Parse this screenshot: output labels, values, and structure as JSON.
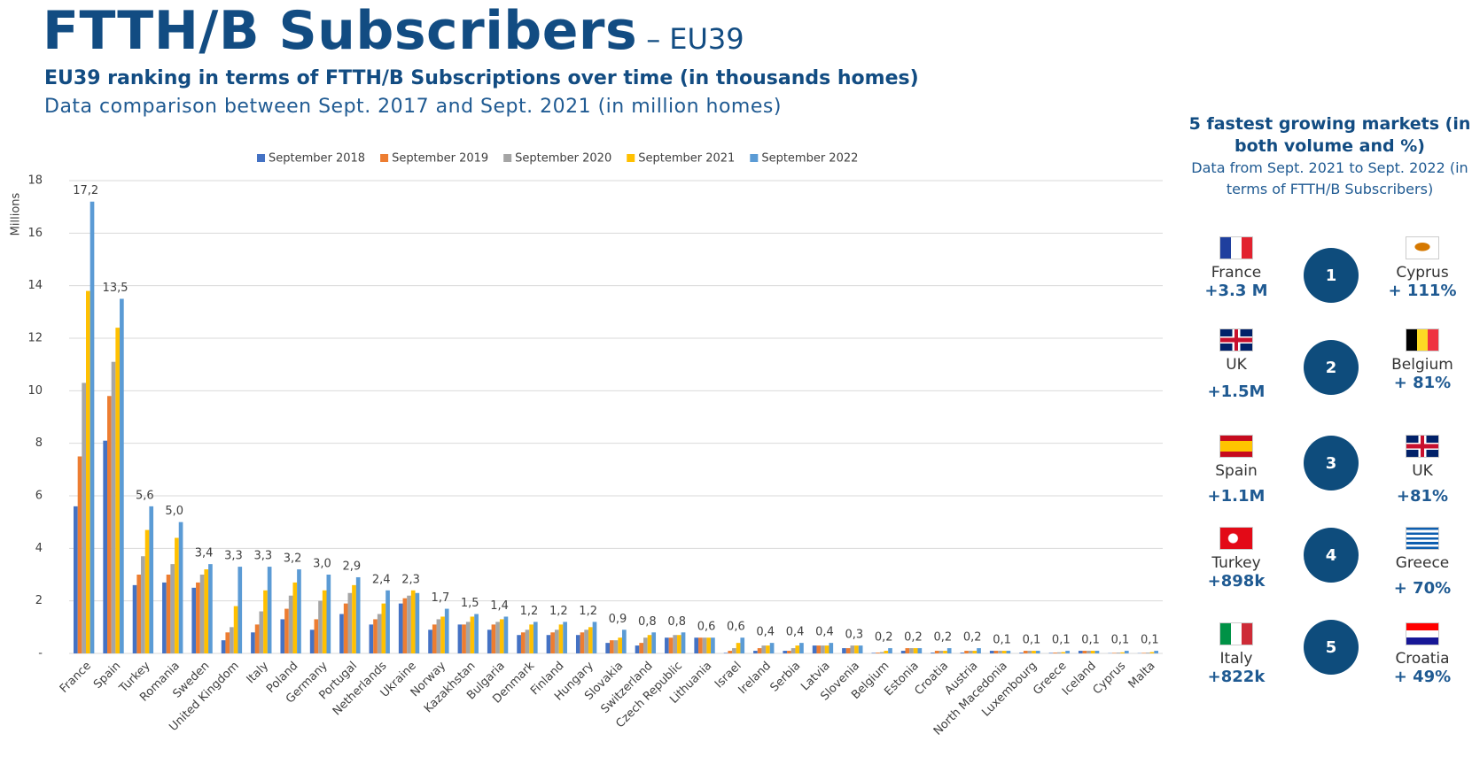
{
  "header": {
    "title": "FTTH/B Subscribers",
    "dash": "–",
    "region": "EU39",
    "subtitle": "EU39 ranking in terms of FTTH/B Subscriptions over time (in thousands homes)",
    "note": "Data comparison between Sept. 2017 and Sept. 2021 (in million homes)"
  },
  "chart_data": {
    "type": "bar",
    "ylabel": "Millions",
    "categories": [
      "France",
      "Spain",
      "Turkey",
      "Romania",
      "Sweden",
      "United Kingdom",
      "Italy",
      "Poland",
      "Germany",
      "Portugal",
      "Netherlands",
      "Ukraine",
      "Norway",
      "Kazakhstan",
      "Bulgaria",
      "Denmark",
      "Finland",
      "Hungary",
      "Slovakia",
      "Switzerland",
      "Czech Republic",
      "Lithuania",
      "Israel",
      "Ireland",
      "Serbia",
      "Latvia",
      "Slovenia",
      "Belgium",
      "Estonia",
      "Croatia",
      "Austria",
      "North Macedonia",
      "Luxembourg",
      "Greece",
      "Iceland",
      "Cyprus",
      "Malta"
    ],
    "series": [
      {
        "name": "September 2018",
        "color": "#4472c4",
        "values": [
          5.6,
          8.1,
          2.6,
          2.7,
          2.5,
          0.5,
          0.8,
          1.3,
          0.9,
          1.5,
          1.1,
          1.9,
          0.9,
          1.1,
          0.9,
          0.7,
          0.7,
          0.7,
          0.4,
          0.3,
          0.6,
          0.6,
          0.02,
          0.1,
          0.1,
          0.3,
          0.2,
          0.02,
          0.1,
          0.03,
          0.03,
          0.1,
          0.03,
          0.02,
          0.1,
          0.01,
          0.01
        ]
      },
      {
        "name": "September 2019",
        "color": "#ed7d31",
        "values": [
          7.5,
          9.8,
          3.0,
          3.0,
          2.7,
          0.8,
          1.1,
          1.7,
          1.3,
          1.9,
          1.3,
          2.1,
          1.1,
          1.1,
          1.1,
          0.8,
          0.8,
          0.8,
          0.5,
          0.4,
          0.6,
          0.6,
          0.1,
          0.2,
          0.1,
          0.3,
          0.2,
          0.03,
          0.2,
          0.1,
          0.1,
          0.1,
          0.1,
          0.03,
          0.1,
          0.02,
          0.02
        ]
      },
      {
        "name": "September 2020",
        "color": "#a5a5a5",
        "values": [
          10.3,
          11.1,
          3.7,
          3.4,
          3.0,
          1.0,
          1.6,
          2.2,
          2.0,
          2.3,
          1.5,
          2.2,
          1.3,
          1.2,
          1.2,
          0.9,
          0.9,
          0.9,
          0.5,
          0.6,
          0.7,
          0.6,
          0.2,
          0.3,
          0.2,
          0.3,
          0.3,
          0.05,
          0.2,
          0.1,
          0.1,
          0.1,
          0.1,
          0.04,
          0.1,
          0.03,
          0.03
        ]
      },
      {
        "name": "September 2021",
        "color": "#ffc000",
        "values": [
          13.8,
          12.4,
          4.7,
          4.4,
          3.2,
          1.8,
          2.4,
          2.7,
          2.4,
          2.6,
          1.9,
          2.4,
          1.4,
          1.4,
          1.3,
          1.1,
          1.1,
          1.0,
          0.6,
          0.7,
          0.7,
          0.6,
          0.4,
          0.3,
          0.3,
          0.3,
          0.3,
          0.1,
          0.2,
          0.1,
          0.1,
          0.1,
          0.1,
          0.05,
          0.1,
          0.04,
          0.05
        ]
      },
      {
        "name": "September 2022",
        "color": "#5b9bd5",
        "values": [
          17.2,
          13.5,
          5.6,
          5.0,
          3.4,
          3.3,
          3.3,
          3.2,
          3.0,
          2.9,
          2.4,
          2.3,
          1.7,
          1.5,
          1.4,
          1.2,
          1.2,
          1.2,
          0.9,
          0.8,
          0.8,
          0.6,
          0.6,
          0.4,
          0.4,
          0.4,
          0.3,
          0.2,
          0.2,
          0.2,
          0.2,
          0.1,
          0.1,
          0.1,
          0.1,
          0.1,
          0.1
        ],
        "value_labels": [
          "17,2",
          "13,5",
          "5,6",
          "5,0",
          "3,4",
          "3,3",
          "3,3",
          "3,2",
          "3,0",
          "2,9",
          "2,4",
          "2,3",
          "1,7",
          "1,5",
          "1,4",
          "1,2",
          "1,2",
          "1,2",
          "0,9",
          "0,8",
          "0,8",
          "0,6",
          "0,6",
          "0,4",
          "0,4",
          "0,4",
          "0,3",
          "0,2",
          "0,2",
          "0,2",
          "0,2",
          "0,1",
          "0,1",
          "0,1",
          "0,1",
          "0,1",
          "0,1"
        ]
      }
    ],
    "ylim": [
      0,
      18
    ],
    "yticks": [
      {
        "value": 0,
        "label": "-"
      },
      2,
      4,
      6,
      8,
      10,
      12,
      14,
      16,
      18
    ],
    "grid": true
  },
  "panel": {
    "title": "5 fastest growing markets (in both volume and %)",
    "subtitle": "Data from Sept. 2021 to Sept. 2022 (in terms of FTTH/B Subscribers)",
    "rows": [
      {
        "rank": "1",
        "volume_country": "France",
        "volume": "+3.3 M",
        "percent_country": "Cyprus",
        "percent": "+ 111%"
      },
      {
        "rank": "2",
        "volume_country": "UK",
        "volume": "+1.5M",
        "percent_country": "Belgium",
        "percent": "+ 81%"
      },
      {
        "rank": "3",
        "volume_country": "Spain",
        "volume": "+1.1M",
        "percent_country": "UK",
        "percent": "+81%"
      },
      {
        "rank": "4",
        "volume_country": "Turkey",
        "volume": "+898k",
        "percent_country": "Greece",
        "percent": "+ 70%"
      },
      {
        "rank": "5",
        "volume_country": "Italy",
        "volume": "+822k",
        "percent_country": "Croatia",
        "percent": "+ 49%"
      }
    ]
  }
}
